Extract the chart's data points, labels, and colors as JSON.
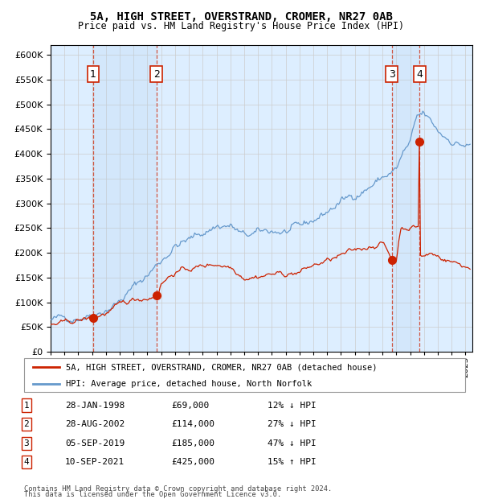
{
  "title1": "5A, HIGH STREET, OVERSTRAND, CROMER, NR27 0AB",
  "title2": "Price paid vs. HM Land Registry's House Price Index (HPI)",
  "ylim": [
    0,
    620000
  ],
  "yticks": [
    0,
    50000,
    100000,
    150000,
    200000,
    250000,
    300000,
    350000,
    400000,
    450000,
    500000,
    550000,
    600000
  ],
  "xlim_start": 1995.0,
  "xlim_end": 2025.5,
  "hpi_color": "#6699cc",
  "price_color": "#cc2200",
  "sale_color": "#cc2200",
  "bg_color": "#ddeeff",
  "transactions": [
    {
      "num": 1,
      "date_str": "28-JAN-1998",
      "date_x": 1998.08,
      "price": 69000,
      "hpi_pct": "12% ↓ HPI"
    },
    {
      "num": 2,
      "date_str": "28-AUG-2002",
      "date_x": 2002.66,
      "price": 114000,
      "hpi_pct": "27% ↓ HPI"
    },
    {
      "num": 3,
      "date_str": "05-SEP-2019",
      "date_x": 2019.68,
      "price": 185000,
      "hpi_pct": "47% ↓ HPI"
    },
    {
      "num": 4,
      "date_str": "10-SEP-2021",
      "date_x": 2021.69,
      "price": 425000,
      "hpi_pct": "15% ↑ HPI"
    }
  ],
  "legend1": "5A, HIGH STREET, OVERSTRAND, CROMER, NR27 0AB (detached house)",
  "legend2": "HPI: Average price, detached house, North Norfolk",
  "footer1": "Contains HM Land Registry data © Crown copyright and database right 2024.",
  "footer2": "This data is licensed under the Open Government Licence v3.0.",
  "years_hpi": [
    1995.0,
    1996.0,
    1997.0,
    1998.0,
    1999.0,
    2000.0,
    2001.0,
    2002.0,
    2003.0,
    2004.0,
    2005.0,
    2006.0,
    2007.0,
    2008.0,
    2009.0,
    2010.0,
    2011.0,
    2012.0,
    2013.0,
    2014.0,
    2015.0,
    2016.0,
    2017.0,
    2018.0,
    2019.0,
    2019.5,
    2020.0,
    2020.5,
    2021.0,
    2021.5,
    2022.0,
    2022.5,
    2023.0,
    2023.5,
    2024.0,
    2024.5,
    2025.3
  ],
  "vals_hpi": [
    65000,
    68000,
    72000,
    78000,
    88000,
    103000,
    130000,
    155000,
    185000,
    215000,
    225000,
    240000,
    255000,
    255000,
    232000,
    238000,
    244000,
    242000,
    248000,
    265000,
    283000,
    303000,
    318000,
    333000,
    352000,
    360000,
    368000,
    400000,
    420000,
    470000,
    478000,
    462000,
    445000,
    435000,
    428000,
    422000,
    415000
  ],
  "years_price": [
    1995.0,
    1996.0,
    1997.0,
    1998.08,
    1999.0,
    2000.0,
    2001.0,
    2002.66,
    2003.0,
    2004.0,
    2005.0,
    2006.0,
    2007.0,
    2008.0,
    2009.0,
    2010.0,
    2011.0,
    2012.0,
    2013.0,
    2014.0,
    2015.0,
    2016.0,
    2017.0,
    2018.0,
    2019.0,
    2019.68,
    2020.0,
    2020.3,
    2021.0,
    2021.68,
    2021.69,
    2021.7,
    2022.0,
    2022.5,
    2023.0,
    2023.5,
    2024.0,
    2024.5,
    2025.3
  ],
  "vals_price": [
    55000,
    57000,
    63000,
    69000,
    78000,
    92000,
    105000,
    114000,
    140000,
    162000,
    167000,
    173000,
    178000,
    173000,
    153000,
    154000,
    158000,
    157000,
    161000,
    174000,
    183000,
    193000,
    203000,
    213000,
    222000,
    185000,
    185000,
    250000,
    253000,
    253000,
    425000,
    195000,
    193000,
    198000,
    193000,
    188000,
    183000,
    178000,
    170000
  ]
}
